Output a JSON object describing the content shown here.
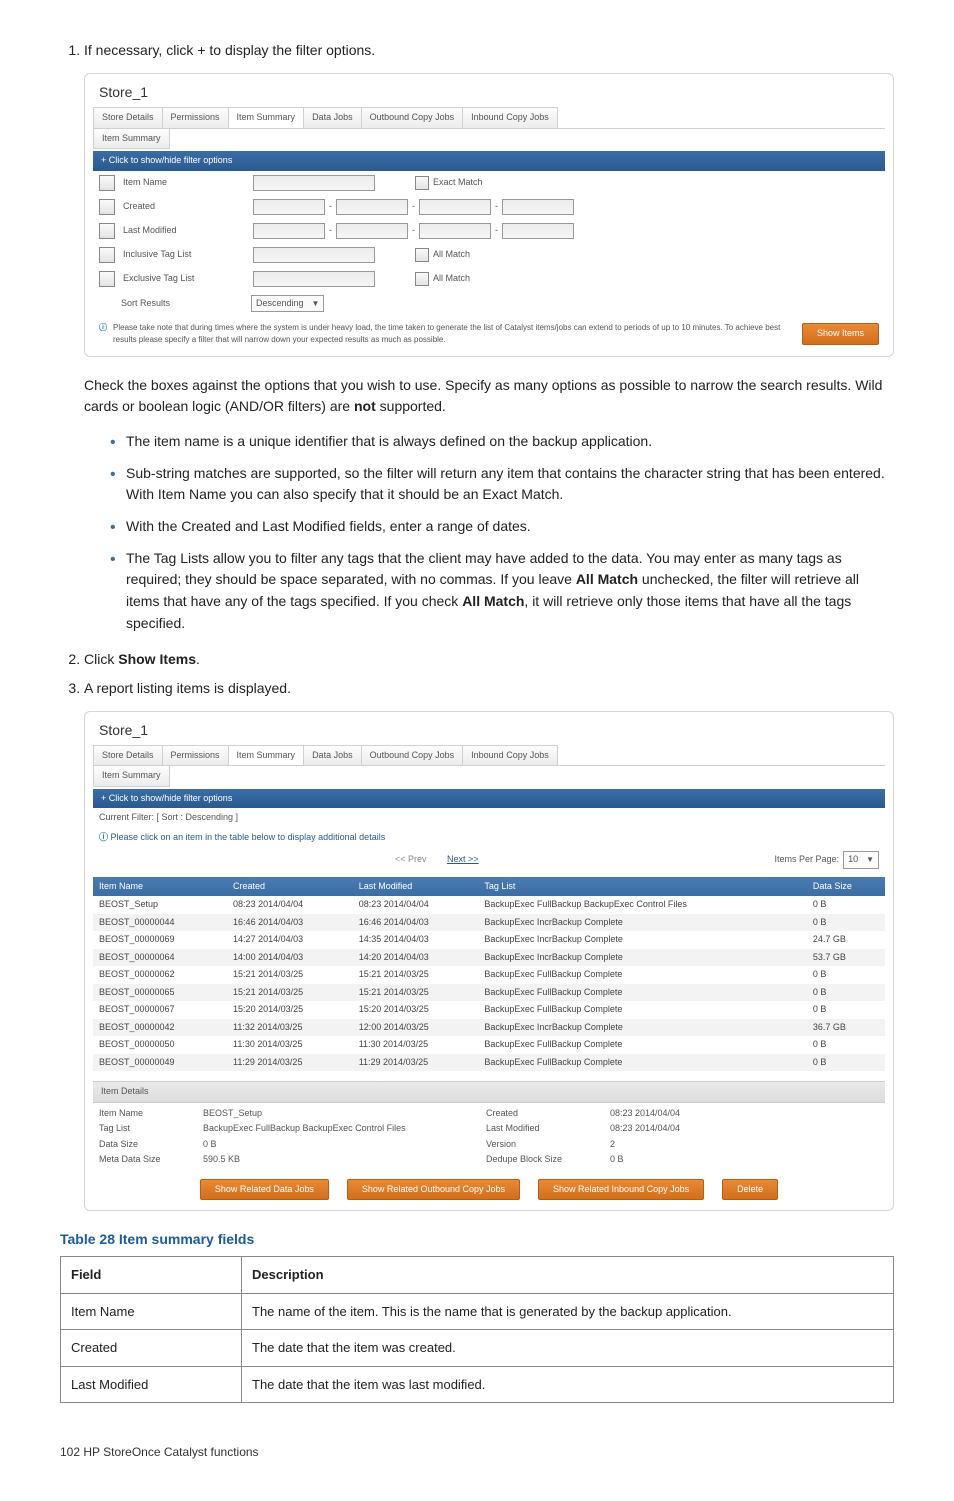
{
  "step1": {
    "num": "1.",
    "text": "If necessary, click + to display the filter options."
  },
  "shot1": {
    "title": "Store_1",
    "tabs": [
      "Store Details",
      "Permissions",
      "Item Summary",
      "Data Jobs",
      "Outbound Copy Jobs",
      "Inbound Copy Jobs"
    ],
    "subtab": "Item Summary",
    "filterBar": "+ Click to show/hide filter options",
    "rows": {
      "r0": "Item Name",
      "r0b": "Exact Match",
      "r1": "Created",
      "r2": "Last Modified",
      "r3": "Inclusive Tag List",
      "r3b": "All Match",
      "r4": "Exclusive Tag List",
      "r4b": "All Match",
      "r5": "Sort Results",
      "r5sel": "Descending"
    },
    "note": "Please take note that during times where the system is under heavy load, the time taken to generate the list of Catalyst items/jobs can extend to periods of up to 10 minutes. To achieve best results please specify a filter that will narrow down your expected results as much as possible.",
    "showBtn": "Show Items"
  },
  "para1": "Check the boxes against the options that you wish to use. Specify as many options as possible to narrow the search results. Wild cards or boolean logic (AND/OR filters) are ",
  "para1b": "not",
  "para1c": " supported.",
  "bul": [
    "The item name is a unique identifier that is always defined on the backup application.",
    "Sub-string matches are supported, so the filter will return any item that contains the character string that has been entered. With Item Name you can also specify that it should be an Exact Match.",
    "With the Created and Last Modified fields, enter a range of dates."
  ],
  "bul4a": "The Tag Lists allow you to filter any tags that the client may have added to the data. You may enter as many tags as required; they should be space separated, with no commas. If you leave ",
  "bul4b": "All Match",
  "bul4c": " unchecked, the filter will retrieve all items that have any of the tags specified. If you check ",
  "bul4d": "All Match",
  "bul4e": ", it will retrieve only those items that have all the tags specified.",
  "step2": {
    "num": "2.",
    "a": "Click ",
    "b": "Show Items",
    "c": "."
  },
  "step3": {
    "num": "3.",
    "text": "A report listing items is displayed."
  },
  "shot2": {
    "title": "Store_1",
    "filterBar": "+ Click to show/hide filter options",
    "curFilter": "Current Filter: [ Sort : Descending ]",
    "hint": "Please click on an item in the table below to display additional details",
    "prev": "<< Prev",
    "next": "Next >>",
    "ippLabel": "Items Per Page:",
    "ipp": "10",
    "headers": [
      "Item Name",
      "Created",
      "Last Modified",
      "Tag List",
      "Data Size"
    ],
    "rows": [
      [
        "BEOST_Setup",
        "08:23 2014/04/04",
        "08:23 2014/04/04",
        "BackupExec FullBackup BackupExec Control Files",
        "0 B"
      ],
      [
        "BEOST_00000044",
        "16:46 2014/04/03",
        "16:46 2014/04/03",
        "BackupExec IncrBackup Complete",
        "0 B"
      ],
      [
        "BEOST_00000069",
        "14:27 2014/04/03",
        "14:35 2014/04/03",
        "BackupExec IncrBackup Complete",
        "24.7 GB"
      ],
      [
        "BEOST_00000064",
        "14:00 2014/04/03",
        "14:20 2014/04/03",
        "BackupExec IncrBackup Complete",
        "53.7 GB"
      ],
      [
        "BEOST_00000062",
        "15:21 2014/03/25",
        "15:21 2014/03/25",
        "BackupExec FullBackup Complete",
        "0 B"
      ],
      [
        "BEOST_00000065",
        "15:21 2014/03/25",
        "15:21 2014/03/25",
        "BackupExec FullBackup Complete",
        "0 B"
      ],
      [
        "BEOST_00000067",
        "15:20 2014/03/25",
        "15:20 2014/03/25",
        "BackupExec FullBackup Complete",
        "0 B"
      ],
      [
        "BEOST_00000042",
        "11:32 2014/03/25",
        "12:00 2014/03/25",
        "BackupExec IncrBackup Complete",
        "36.7 GB"
      ],
      [
        "BEOST_00000050",
        "11:30 2014/03/25",
        "11:30 2014/03/25",
        "BackupExec FullBackup Complete",
        "0 B"
      ],
      [
        "BEOST_00000049",
        "11:29 2014/03/25",
        "11:29 2014/03/25",
        "BackupExec FullBackup Complete",
        "0 B"
      ]
    ],
    "detailHeader": "Item Details",
    "detail": {
      "ItemName": "BEOST_Setup",
      "TagList": "BackupExec FullBackup BackupExec Control Files",
      "DataSize": "0 B",
      "MetaDataSize": "590.5 KB",
      "Created": "08:23 2014/04/04",
      "LastModified": "08:23 2014/04/04",
      "Version": "2",
      "DedupeBlockSize": "0 B",
      "lbl_ItemName": "Item Name",
      "lbl_TagList": "Tag List",
      "lbl_DataSize": "Data Size",
      "lbl_Meta": "Meta Data Size",
      "lbl_Created": "Created",
      "lbl_LastMod": "Last Modified",
      "lbl_Version": "Version",
      "lbl_Dedupe": "Dedupe Block Size"
    },
    "actions": [
      "Show Related Data Jobs",
      "Show Related Outbound Copy Jobs",
      "Show Related Inbound Copy Jobs",
      "Delete"
    ]
  },
  "tableCaption": "Table 28 Item summary fields",
  "descTable": {
    "headers": [
      "Field",
      "Description"
    ],
    "rows": [
      [
        "Item Name",
        "The name of the item. This is the name that is generated by the backup application."
      ],
      [
        "Created",
        "The date that the item was created."
      ],
      [
        "Last Modified",
        "The date that the item was last modified."
      ]
    ]
  },
  "footer": "102   HP StoreOnce Catalyst functions"
}
